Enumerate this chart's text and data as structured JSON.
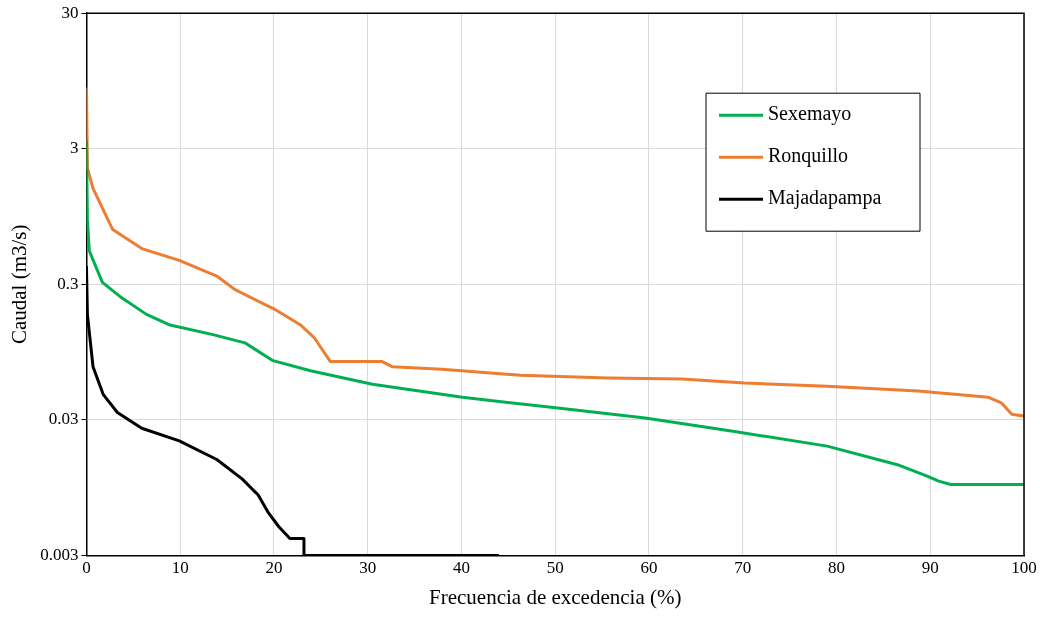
{
  "chart_data": {
    "type": "line",
    "xlabel": "Frecuencia de excedencia (%)",
    "ylabel": "Caudal (m3/s)",
    "log": "y",
    "xlim": [
      0,
      100
    ],
    "xticks": [
      0,
      10,
      20,
      30,
      40,
      50,
      60,
      70,
      80,
      90,
      100
    ],
    "ylim": [
      0.003,
      30
    ],
    "yticks": [
      0.003,
      0.03,
      0.3,
      3,
      30
    ],
    "grid": true,
    "legend": "top right",
    "marker": "none",
    "line_style": "solid",
    "series": [
      {
        "name": "Sexemayo",
        "color": "#00b050",
        "x": [
          0,
          0.1,
          0.3,
          1.7,
          3.6,
          6.4,
          8.8,
          13.6,
          16.9,
          19.9,
          23.9,
          30.5,
          40.1,
          49.8,
          59.6,
          69.3,
          79.0,
          86.5,
          89.6,
          90.9,
          92.2,
          100
        ],
        "values": [
          3.5,
          0.9,
          0.53,
          0.31,
          0.243,
          0.18,
          0.151,
          0.127,
          0.111,
          0.082,
          0.069,
          0.055,
          0.044,
          0.037,
          0.031,
          0.0245,
          0.0192,
          0.014,
          0.0116,
          0.0106,
          0.01,
          0.01
        ]
      },
      {
        "name": "Ronquillo",
        "color": "#ed7d31",
        "x": [
          0,
          0.1,
          0.7,
          2.8,
          5.9,
          9.9,
          13.9,
          15.8,
          20.2,
          22.8,
          24.3,
          26.0,
          31.5,
          32.6,
          37.9,
          46.3,
          55.6,
          63.5,
          70.2,
          79.0,
          88.7,
          96.2,
          97.6,
          98.7,
          100
        ],
        "values": [
          8.5,
          2.17,
          1.53,
          0.76,
          0.55,
          0.45,
          0.345,
          0.275,
          0.194,
          0.151,
          0.121,
          0.081,
          0.081,
          0.074,
          0.071,
          0.064,
          0.061,
          0.06,
          0.056,
          0.053,
          0.049,
          0.044,
          0.04,
          0.033,
          0.032
        ]
      },
      {
        "name": "Majadapampa",
        "color": "#000000",
        "x": [
          0,
          0.1,
          0.7,
          1.8,
          3.3,
          5.9,
          9.9,
          13.9,
          16.6,
          18.3,
          19.4,
          20.5,
          21.7,
          23.2,
          23.2,
          44.0
        ],
        "values": [
          0.41,
          0.18,
          0.074,
          0.046,
          0.034,
          0.026,
          0.021,
          0.0153,
          0.011,
          0.0084,
          0.0062,
          0.0049,
          0.004,
          0.004,
          0.003,
          0.003
        ]
      }
    ]
  }
}
